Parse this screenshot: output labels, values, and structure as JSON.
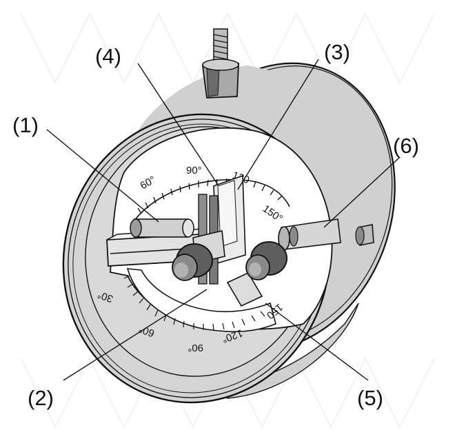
{
  "diagram": {
    "callouts": [
      "(1)",
      "(2)",
      "(3)",
      "(4)",
      "(5)",
      "(6)"
    ],
    "upper_scale": [
      "60°",
      "90°",
      "120",
      "150°"
    ],
    "lower_scale": [
      "30°",
      "60°",
      "90°",
      "120°",
      "150"
    ],
    "colors": {
      "housing": "#cfcfcf",
      "outline": "#111111",
      "background": "#ffffff"
    }
  }
}
